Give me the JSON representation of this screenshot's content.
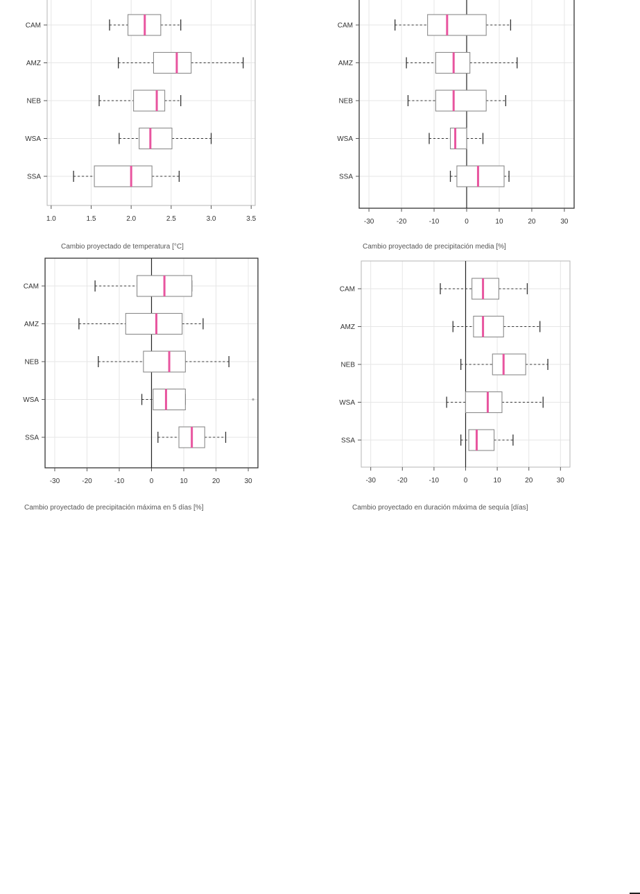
{
  "chart_data": [
    {
      "type": "boxplot",
      "title": "",
      "xlabel": "Cambio proyectado de temperatura [°C]",
      "ylabel": "",
      "xlim": [
        0.95,
        3.55
      ],
      "xticks": [
        1.0,
        1.5,
        2.0,
        2.5,
        3.0,
        3.5
      ],
      "tick_labels": [
        "1.0",
        "1.5",
        "2.0",
        "2.5",
        "3.0",
        "3.5"
      ],
      "zero_line": false,
      "grid": true,
      "categories": [
        "CAM",
        "AMZ",
        "NEB",
        "WSA",
        "SSA"
      ],
      "boxes": [
        {
          "label": "CAM",
          "whislo": 1.73,
          "q1": 1.96,
          "med": 2.17,
          "q3": 2.37,
          "whishi": 2.62
        },
        {
          "label": "AMZ",
          "whislo": 1.84,
          "q1": 2.28,
          "med": 2.57,
          "q3": 2.75,
          "whishi": 3.4
        },
        {
          "label": "NEB",
          "whislo": 1.6,
          "q1": 2.03,
          "med": 2.32,
          "q3": 2.42,
          "whishi": 2.62
        },
        {
          "label": "WSA",
          "whislo": 1.85,
          "q1": 2.1,
          "med": 2.24,
          "q3": 2.51,
          "whishi": 3.0
        },
        {
          "label": "SSA",
          "whislo": 1.28,
          "q1": 1.54,
          "med": 2.0,
          "q3": 2.26,
          "whishi": 2.6
        }
      ]
    },
    {
      "type": "boxplot",
      "title": "",
      "xlabel": "Cambio proyectado de precipitación media [%]",
      "ylabel": "",
      "xlim": [
        -33,
        33
      ],
      "xticks": [
        -30,
        -20,
        -10,
        0,
        10,
        20,
        30
      ],
      "tick_labels": [
        "-30",
        "-20",
        "-10",
        "0",
        "10",
        "20",
        "30"
      ],
      "zero_line": true,
      "grid": true,
      "categories": [
        "CAM",
        "AMZ",
        "NEB",
        "WSA",
        "SSA"
      ],
      "boxes": [
        {
          "label": "CAM",
          "whislo": -22,
          "q1": -12,
          "med": -6,
          "q3": 6,
          "whishi": 13.5
        },
        {
          "label": "AMZ",
          "whislo": -18.5,
          "q1": -9.5,
          "med": -4,
          "q3": 1,
          "whishi": 15.5
        },
        {
          "label": "NEB",
          "whislo": -18,
          "q1": -9.5,
          "med": -4,
          "q3": 6,
          "whishi": 12
        },
        {
          "label": "WSA",
          "whislo": -11.5,
          "q1": -5,
          "med": -3.5,
          "q3": 0,
          "whishi": 5
        },
        {
          "label": "SSA",
          "whislo": -5,
          "q1": -3,
          "med": 3.5,
          "q3": 11.5,
          "whishi": 13
        }
      ]
    },
    {
      "type": "boxplot",
      "title": "",
      "xlabel": "Cambio proyectado de precipitación máxima en 5 días [%]",
      "ylabel": "",
      "xlim": [
        -33,
        33
      ],
      "xticks": [
        -30,
        -20,
        -10,
        0,
        10,
        20,
        30
      ],
      "tick_labels": [
        "-30",
        "-20",
        "-10",
        "0",
        "10",
        "20",
        "30"
      ],
      "zero_line": true,
      "grid": true,
      "categories": [
        "CAM",
        "AMZ",
        "NEB",
        "WSA",
        "SSA"
      ],
      "boxes": [
        {
          "label": "CAM",
          "whislo": -17.5,
          "q1": -4.5,
          "med": 4,
          "q3": 12.5,
          "whishi": 12.5
        },
        {
          "label": "AMZ",
          "whislo": -22.5,
          "q1": -8,
          "med": 1.5,
          "q3": 9.5,
          "whishi": 16
        },
        {
          "label": "NEB",
          "whislo": -16.5,
          "q1": -2.5,
          "med": 5.5,
          "q3": 10.5,
          "whishi": 24
        },
        {
          "label": "WSA",
          "whislo": -3,
          "q1": 0.5,
          "med": 4.5,
          "q3": 10.5,
          "whishi": 10.5,
          "fliers": [
            31.5
          ]
        },
        {
          "label": "SSA",
          "whislo": 2,
          "q1": 8.5,
          "med": 12.5,
          "q3": 16.5,
          "whishi": 23
        }
      ]
    },
    {
      "type": "boxplot",
      "title": "",
      "xlabel": "Cambio proyectado en duración máxima de sequía [días]",
      "ylabel": "",
      "xlim": [
        -33,
        33
      ],
      "xticks": [
        -30,
        -20,
        -10,
        0,
        10,
        20,
        30
      ],
      "tick_labels": [
        "-30",
        "-20",
        "-10",
        "0",
        "10",
        "20",
        "30"
      ],
      "zero_line": true,
      "grid": true,
      "categories": [
        "CAM",
        "AMZ",
        "NEB",
        "WSA",
        "SSA"
      ],
      "boxes": [
        {
          "label": "CAM",
          "whislo": -8,
          "q1": 2,
          "med": 5.5,
          "q3": 10.5,
          "whishi": 19.5
        },
        {
          "label": "AMZ",
          "whislo": -4,
          "q1": 2.5,
          "med": 5.5,
          "q3": 12,
          "whishi": 23.5
        },
        {
          "label": "NEB",
          "whislo": -1.5,
          "q1": 8.5,
          "med": 12,
          "q3": 19,
          "whishi": 26
        },
        {
          "label": "WSA",
          "whislo": -6,
          "q1": 0,
          "med": 7,
          "q3": 11.5,
          "whishi": 24.5
        },
        {
          "label": "SSA",
          "whislo": -1.5,
          "q1": 1,
          "med": 3.5,
          "q3": 9,
          "whishi": 15
        }
      ]
    }
  ],
  "style": {
    "median_color": "#e8559f",
    "box_color": "#8a8a8a",
    "whisker_color": "#333333",
    "grid_color": "#e6e6e6",
    "frame_color_light": "#b5b5b5",
    "frame_color_dark": "#333333",
    "zero_line_color": "#222222"
  }
}
